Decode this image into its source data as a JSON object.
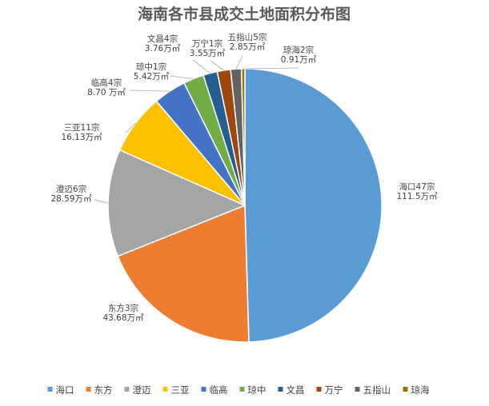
{
  "chart_data": {
    "type": "pie",
    "title": "海南各市县成交土地面积分布图",
    "unit": "万㎡",
    "slices": [
      {
        "name": "海口",
        "count_label": "海口47宗",
        "value": 111.5,
        "value_label": "111.5万㎡",
        "color": "#5B9BD5"
      },
      {
        "name": "东方",
        "count_label": "东方3宗",
        "value": 43.68,
        "value_label": "43.68万㎡",
        "color": "#ED7D31"
      },
      {
        "name": "澄迈",
        "count_label": "澄迈6宗",
        "value": 28.59,
        "value_label": "28.59万㎡",
        "color": "#A5A5A5"
      },
      {
        "name": "三亚",
        "count_label": "三亚11宗",
        "value": 16.13,
        "value_label": "16.13万㎡",
        "color": "#FFC000"
      },
      {
        "name": "临高",
        "count_label": "临高4宗",
        "value": 8.7,
        "value_label": "8.70 万㎡",
        "color": "#4472C4"
      },
      {
        "name": "琼中",
        "count_label": "琼中1宗",
        "value": 5.42,
        "value_label": "5.42万㎡",
        "color": "#70AD47"
      },
      {
        "name": "文昌",
        "count_label": "文昌4宗",
        "value": 3.76,
        "value_label": "3.76万㎡",
        "color": "#255E91"
      },
      {
        "name": "万宁",
        "count_label": "万宁1宗",
        "value": 3.55,
        "value_label": "3.55万㎡",
        "color": "#9E480E"
      },
      {
        "name": "五指山",
        "count_label": "五指山5宗",
        "value": 2.85,
        "value_label": "2.85万㎡",
        "color": "#636363"
      },
      {
        "name": "琼海",
        "count_label": "琼海2宗",
        "value": 0.91,
        "value_label": "0.91万㎡",
        "color": "#997300"
      }
    ],
    "legend": "bottom"
  }
}
